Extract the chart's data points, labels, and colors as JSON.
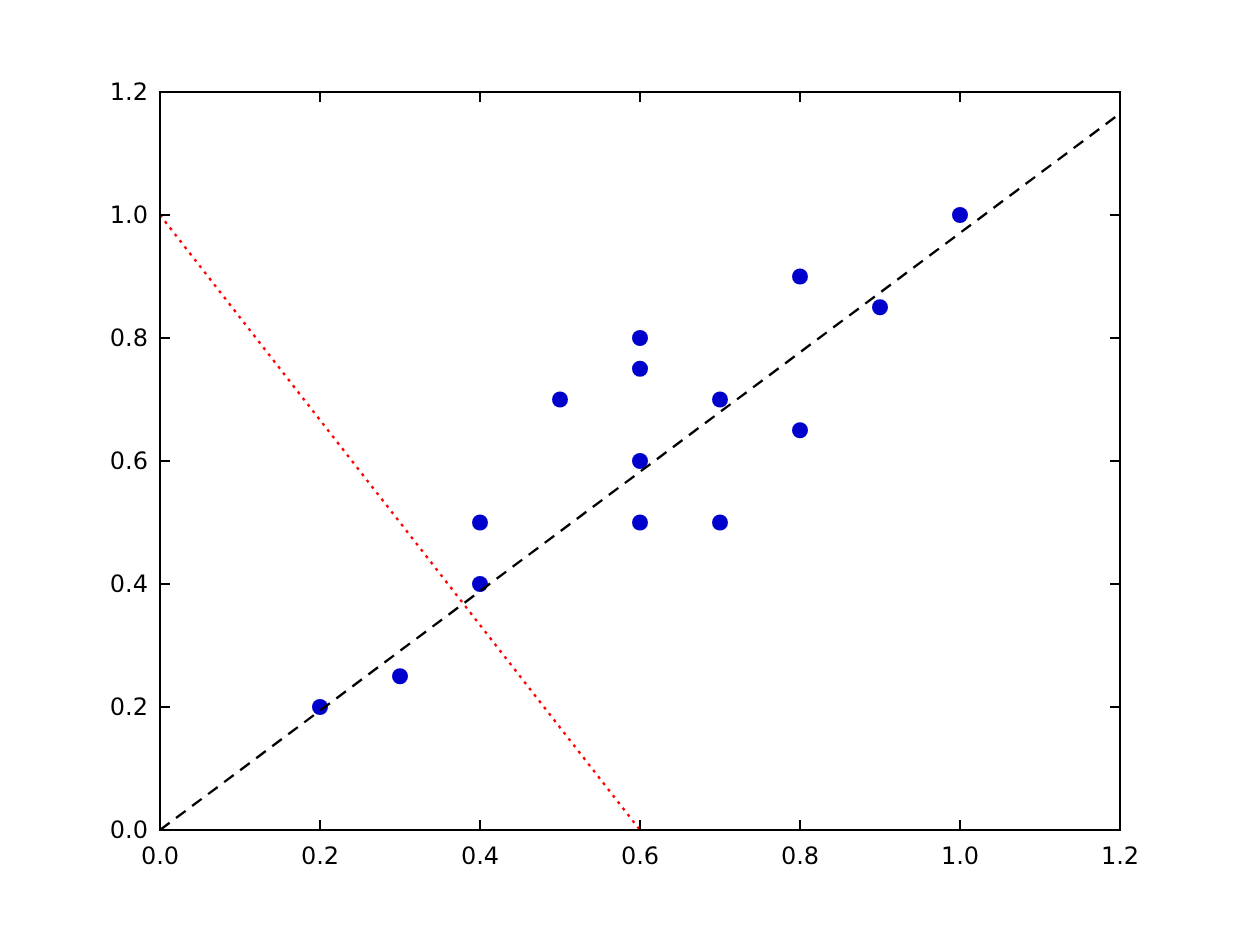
{
  "chart_data": {
    "type": "scatter",
    "marker": "circle",
    "grid": false,
    "xlim": [
      0,
      1.2
    ],
    "ylim": [
      0,
      1.2
    ],
    "xticks": [
      {
        "value": 0,
        "label": "0.0"
      },
      {
        "value": 0.2,
        "label": "0.2"
      },
      {
        "value": 0.4,
        "label": "0.4"
      },
      {
        "value": 0.6,
        "label": "0.6"
      },
      {
        "value": 0.8,
        "label": "0.8"
      },
      {
        "value": 1,
        "label": "1.0"
      },
      {
        "value": 1.2,
        "label": "1.2"
      }
    ],
    "yticks": [
      {
        "value": 0,
        "label": "0.0"
      },
      {
        "value": 0.2,
        "label": "0.2"
      },
      {
        "value": 0.4,
        "label": "0.4"
      },
      {
        "value": 0.6,
        "label": "0.6"
      },
      {
        "value": 0.8,
        "label": "0.8"
      },
      {
        "value": 1,
        "label": "1.0"
      },
      {
        "value": 1.2,
        "label": "1.2"
      }
    ],
    "series": [
      {
        "color": "#0000cc",
        "x": [
          0.2,
          0.3,
          0.4,
          0.4,
          0.5,
          0.6,
          0.6,
          0.6,
          0.6,
          0.7,
          0.7,
          0.8,
          0.8,
          0.9,
          1.0
        ],
        "values": [
          0.2,
          0.25,
          0.4,
          0.5,
          0.7,
          0.5,
          0.6,
          0.75,
          0.8,
          0.5,
          0.7,
          0.65,
          0.9,
          0.85,
          1.0
        ]
      },
      {
        "type": "line",
        "color": "#000000",
        "line_style": "dashed",
        "marker": "none",
        "x": [
          0,
          1.2
        ],
        "values": [
          0.0,
          1.165
        ]
      },
      {
        "type": "line",
        "color": "#ff0000",
        "line_style": "dotted",
        "marker": "none",
        "x": [
          0,
          0.6
        ],
        "values": [
          1.0,
          0.0
        ]
      }
    ]
  }
}
